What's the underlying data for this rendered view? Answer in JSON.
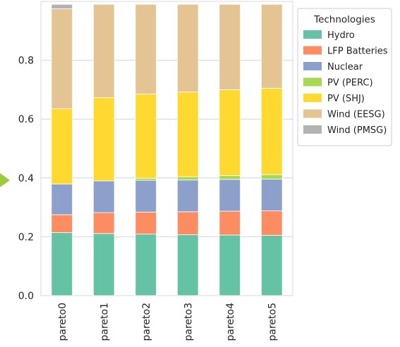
{
  "chart_data": {
    "type": "bar",
    "stacked": true,
    "categories": [
      "pareto0",
      "pareto1",
      "pareto2",
      "pareto3",
      "pareto4",
      "pareto5"
    ],
    "ylim": [
      0,
      1.0
    ],
    "yticks": [
      0.0,
      0.2,
      0.4,
      0.6,
      0.8
    ],
    "grid": true,
    "legend": {
      "title": "Technologies",
      "placement": "right-top"
    },
    "series": [
      {
        "name": "Hydro",
        "color": "#66c2a5",
        "values": [
          0.214,
          0.211,
          0.209,
          0.207,
          0.206,
          0.205
        ]
      },
      {
        "name": "LFP Batteries",
        "color": "#fc8d62",
        "values": [
          0.061,
          0.071,
          0.075,
          0.078,
          0.081,
          0.083
        ]
      },
      {
        "name": "Nuclear",
        "color": "#8da0cb",
        "values": [
          0.104,
          0.108,
          0.108,
          0.108,
          0.108,
          0.108
        ]
      },
      {
        "name": "PV (PERC)",
        "color": "#a6d854",
        "values": [
          0.0,
          0.0,
          0.007,
          0.011,
          0.013,
          0.015
        ]
      },
      {
        "name": "PV (SHJ)",
        "color": "#ffd92f",
        "values": [
          0.256,
          0.283,
          0.286,
          0.288,
          0.292,
          0.294
        ]
      },
      {
        "name": "Wind (EESG)",
        "color": "#e5c494",
        "values": [
          0.34,
          0.317,
          0.305,
          0.298,
          0.29,
          0.285
        ]
      },
      {
        "name": "Wind (PMSG)",
        "color": "#b3b3b3",
        "values": [
          0.015,
          0.0,
          0.0,
          0.0,
          0.0,
          0.0
        ]
      }
    ]
  },
  "decor": {
    "arrow_color": "#9ccc3d"
  }
}
